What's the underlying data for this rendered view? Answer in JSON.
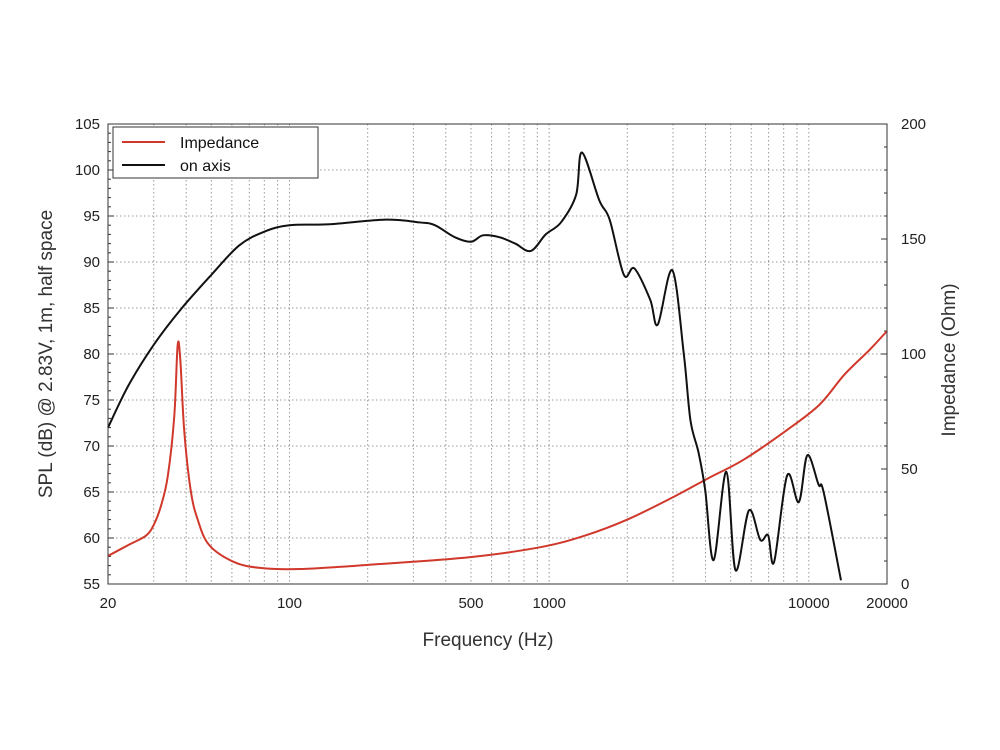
{
  "chart_data": {
    "type": "line",
    "title": "",
    "xlabel": "Frequency (Hz)",
    "ylabel": "SPL (dB) @ 2.83V, 1m, half space",
    "y2label": "Impedance (Ohm)",
    "xscale": "log",
    "xlim": [
      20,
      20000
    ],
    "ylim": [
      55,
      105
    ],
    "y2lim": [
      0,
      200
    ],
    "xticks": [
      20,
      100,
      500,
      1000,
      10000,
      20000
    ],
    "xtick_labels": [
      "20",
      "100",
      "500",
      "1000",
      "10000",
      "20000"
    ],
    "yticks": [
      55,
      60,
      65,
      70,
      75,
      80,
      85,
      90,
      95,
      100,
      105
    ],
    "y2ticks": [
      0,
      50,
      100,
      150,
      200
    ],
    "grid": true,
    "legend_position": "top-left",
    "series": [
      {
        "name": "Impedance",
        "axis": "right",
        "color": "#d0382b",
        "x": [
          20,
          24,
          28,
          30,
          32,
          34,
          36,
          37.1,
          38,
          39.3,
          41.6,
          44.3,
          49,
          61,
          77,
          110,
          224,
          497,
          925,
          1370,
          2000,
          3030,
          4100,
          5600,
          8250,
          11000,
          13700,
          17200,
          20000
        ],
        "y": [
          12.2,
          17,
          21,
          25.7,
          34,
          47,
          73,
          104,
          97,
          67,
          41,
          28,
          17,
          9.6,
          7,
          6.5,
          8.7,
          11.7,
          16,
          21,
          28,
          38,
          46,
          54,
          67,
          78,
          91,
          102,
          110
        ]
      },
      {
        "name": "on axis",
        "axis": "left",
        "color": "#111111",
        "x": [
          20,
          24,
          30,
          38,
          50,
          64,
          80,
          100,
          143,
          234,
          318,
          363,
          433,
          500,
          556,
          643,
          740,
          850,
          970,
          1110,
          1270,
          1337,
          1560,
          1710,
          1940,
          2130,
          2450,
          2620,
          2980,
          3300,
          3500,
          3760,
          3990,
          4300,
          4810,
          5220,
          5880,
          6500,
          6970,
          7350,
          8250,
          9150,
          9870,
          10900,
          11400,
          13300
        ],
        "y": [
          72,
          76.6,
          81,
          84.8,
          88.6,
          91.8,
          93.3,
          94,
          94.1,
          94.6,
          94.3,
          94,
          92.7,
          92.2,
          92.9,
          92.7,
          92,
          91.2,
          93,
          94.3,
          97.3,
          101.9,
          96.7,
          94.6,
          88.6,
          89.3,
          85.9,
          83.2,
          89.1,
          80,
          72.8,
          69.3,
          65.2,
          57.6,
          67.2,
          56.5,
          63,
          59.8,
          60.3,
          57.4,
          66.8,
          63.9,
          69,
          65.8,
          65,
          55.4
        ]
      }
    ]
  }
}
